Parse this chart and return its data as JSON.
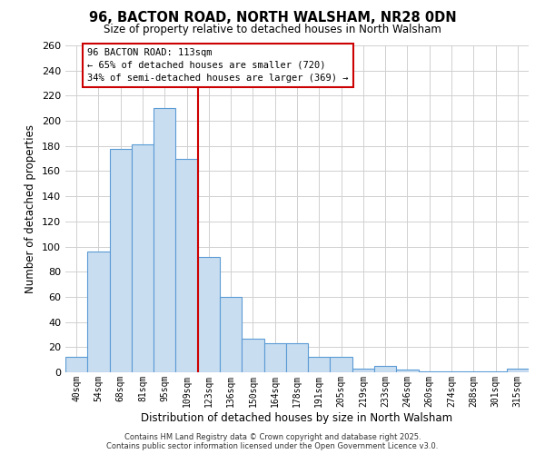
{
  "title": "96, BACTON ROAD, NORTH WALSHAM, NR28 0DN",
  "subtitle": "Size of property relative to detached houses in North Walsham",
  "xlabel": "Distribution of detached houses by size in North Walsham",
  "ylabel": "Number of detached properties",
  "bar_labels": [
    "40sqm",
    "54sqm",
    "68sqm",
    "81sqm",
    "95sqm",
    "109sqm",
    "123sqm",
    "136sqm",
    "150sqm",
    "164sqm",
    "178sqm",
    "191sqm",
    "205sqm",
    "219sqm",
    "233sqm",
    "246sqm",
    "260sqm",
    "274sqm",
    "288sqm",
    "301sqm",
    "315sqm"
  ],
  "bar_values": [
    12,
    96,
    178,
    181,
    210,
    170,
    92,
    60,
    27,
    23,
    23,
    12,
    12,
    3,
    5,
    2,
    1,
    1,
    1,
    1,
    3
  ],
  "bar_color": "#c9ddf0",
  "bar_edgecolor": "#5b9bd5",
  "ylim": [
    0,
    260
  ],
  "yticks": [
    0,
    20,
    40,
    60,
    80,
    100,
    120,
    140,
    160,
    180,
    200,
    220,
    240,
    260
  ],
  "vline_x": 5.5,
  "vline_color": "#cc0000",
  "annotation_title": "96 BACTON ROAD: 113sqm",
  "annotation_line1": "← 65% of detached houses are smaller (720)",
  "annotation_line2": "34% of semi-detached houses are larger (369) →",
  "footer1": "Contains HM Land Registry data © Crown copyright and database right 2025.",
  "footer2": "Contains public sector information licensed under the Open Government Licence v3.0.",
  "background_color": "#ffffff",
  "grid_color": "#d0d0d0"
}
